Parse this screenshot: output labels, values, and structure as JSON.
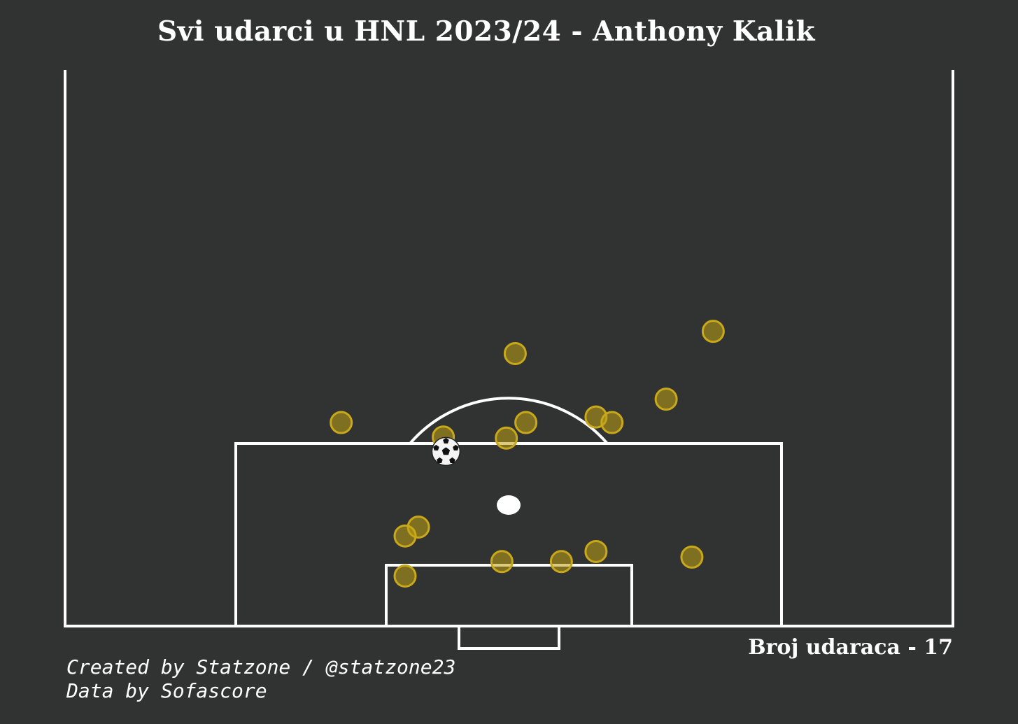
{
  "title": "Svi udarci u HNL 2023/24 - Anthony Kalik",
  "shot_count_label": "Broj udaraca - 17",
  "credits": {
    "line1": "Created by Statzone / @statzone23",
    "line2": "Data by Sofascore"
  },
  "colors": {
    "background": "#313332",
    "lines": "#ffffff",
    "shot_fill": "#8c7a1e",
    "shot_stroke": "#c9a81a"
  },
  "icons": {
    "goal_marker": "football-icon"
  },
  "chart_data": {
    "type": "scatter",
    "title": "Svi udarci u HNL 2023/24 - Anthony Kalik",
    "xlabel": "",
    "ylabel": "",
    "pitch": "half-pitch, vertical, goal at bottom",
    "x_range": [
      0,
      100
    ],
    "y_range": [
      50,
      100
    ],
    "shots": [
      {
        "x": 73,
        "y": 73.5,
        "outcome": "shot"
      },
      {
        "x": 50.7,
        "y": 75.5,
        "outcome": "shot"
      },
      {
        "x": 67.7,
        "y": 79.6,
        "outcome": "shot"
      },
      {
        "x": 31.1,
        "y": 81.7,
        "outcome": "shot"
      },
      {
        "x": 51.9,
        "y": 81.7,
        "outcome": "shot"
      },
      {
        "x": 59.8,
        "y": 81.2,
        "outcome": "shot"
      },
      {
        "x": 61.6,
        "y": 81.7,
        "outcome": "shot"
      },
      {
        "x": 42.6,
        "y": 83.0,
        "outcome": "shot"
      },
      {
        "x": 49.7,
        "y": 83.1,
        "outcome": "shot"
      },
      {
        "x": 42.9,
        "y": 84.3,
        "outcome": "goal"
      },
      {
        "x": 39.8,
        "y": 91.1,
        "outcome": "shot"
      },
      {
        "x": 38.3,
        "y": 91.9,
        "outcome": "shot"
      },
      {
        "x": 49.2,
        "y": 94.2,
        "outcome": "shot"
      },
      {
        "x": 55.9,
        "y": 94.2,
        "outcome": "shot"
      },
      {
        "x": 59.8,
        "y": 93.3,
        "outcome": "shot"
      },
      {
        "x": 70.6,
        "y": 93.8,
        "outcome": "shot"
      },
      {
        "x": 38.3,
        "y": 95.5,
        "outcome": "shot"
      }
    ]
  }
}
